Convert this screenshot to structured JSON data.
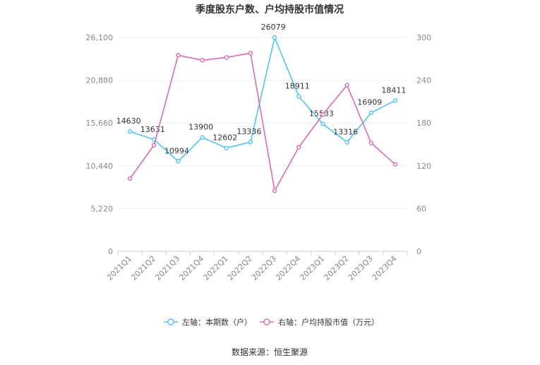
{
  "chart_data": {
    "type": "line",
    "title": "季度股东户数、户均持股市值情况",
    "categories": [
      "2021Q1",
      "2021Q2",
      "2021Q3",
      "2021Q4",
      "2022Q1",
      "2022Q2",
      "2022Q3",
      "2022Q4",
      "2023Q1",
      "2023Q2",
      "2023Q3",
      "2023Q4"
    ],
    "y_left": {
      "ticks": [
        "0",
        "5,220",
        "10,440",
        "15,660",
        "20,880",
        "26,100"
      ],
      "ylim": [
        0,
        26100
      ]
    },
    "y_right": {
      "ticks": [
        "0",
        "60",
        "120",
        "180",
        "240",
        "300"
      ],
      "ylim": [
        0,
        300
      ]
    },
    "series": [
      {
        "name": "左轴：本期数（户）",
        "axis": "left",
        "color": "#4fc3f7",
        "values": [
          14630,
          13631,
          10994,
          13900,
          12602,
          13336,
          26079,
          18911,
          15533,
          13316,
          16909,
          18411
        ],
        "labels": [
          "14630",
          "13631",
          "10994",
          "13900",
          "12602",
          "13336",
          "26079",
          "18911",
          "15533",
          "13316",
          "16909",
          "18411"
        ]
      },
      {
        "name": "右轴：户均持股市值（万元）",
        "axis": "right",
        "color": "#d96bb4",
        "values": [
          102,
          149,
          275,
          268,
          272,
          278,
          85,
          146,
          192,
          233,
          152,
          122
        ]
      }
    ],
    "grid": true,
    "legend_position": "bottom"
  },
  "source": "数据来源：恒生聚源"
}
